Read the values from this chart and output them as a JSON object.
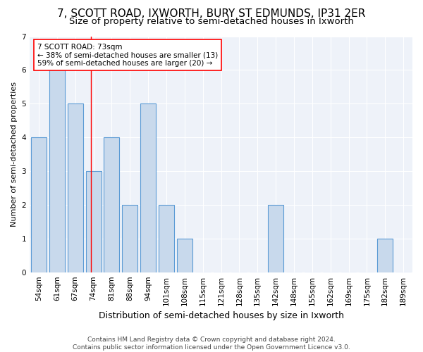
{
  "title": "7, SCOTT ROAD, IXWORTH, BURY ST EDMUNDS, IP31 2ER",
  "subtitle": "Size of property relative to semi-detached houses in Ixworth",
  "xlabel": "Distribution of semi-detached houses by size in Ixworth",
  "ylabel": "Number of semi-detached properties",
  "categories": [
    "54sqm",
    "61sqm",
    "67sqm",
    "74sqm",
    "81sqm",
    "88sqm",
    "94sqm",
    "101sqm",
    "108sqm",
    "115sqm",
    "121sqm",
    "128sqm",
    "135sqm",
    "142sqm",
    "148sqm",
    "155sqm",
    "162sqm",
    "169sqm",
    "175sqm",
    "182sqm",
    "189sqm"
  ],
  "values": [
    4,
    6,
    5,
    3,
    4,
    2,
    5,
    2,
    1,
    0,
    0,
    0,
    0,
    2,
    0,
    0,
    0,
    0,
    0,
    1,
    0
  ],
  "bar_color": "#c8d9ec",
  "bar_edgecolor": "#5b9bd5",
  "bar_linewidth": 0.8,
  "annotation_title": "7 SCOTT ROAD: 73sqm",
  "annotation_line1": "← 38% of semi-detached houses are smaller (13)",
  "annotation_line2": "59% of semi-detached houses are larger (20) →",
  "annotation_box_edgecolor": "red",
  "vline_color": "red",
  "vline_linewidth": 1.0,
  "vline_x_index": 2.857,
  "ylim_max": 7,
  "yticks": [
    0,
    1,
    2,
    3,
    4,
    5,
    6,
    7
  ],
  "footer1": "Contains HM Land Registry data © Crown copyright and database right 2024.",
  "footer2": "Contains public sector information licensed under the Open Government Licence v3.0.",
  "background_color": "#eef2f9",
  "grid_color": "white",
  "title_fontsize": 11,
  "subtitle_fontsize": 9.5,
  "xlabel_fontsize": 9,
  "ylabel_fontsize": 8,
  "tick_fontsize": 7.5,
  "annotation_fontsize": 7.5,
  "footer_fontsize": 6.5
}
